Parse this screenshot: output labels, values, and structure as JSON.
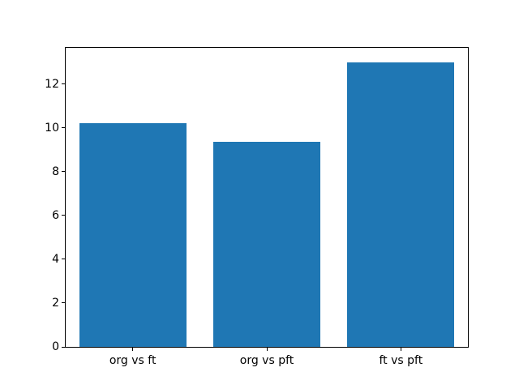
{
  "chart_data": {
    "type": "bar",
    "title": "",
    "categories": [
      "org vs ft",
      "org vs pft",
      "ft vs pft"
    ],
    "values": [
      10.2,
      9.35,
      13.0
    ],
    "xlabel": "",
    "ylabel": "",
    "ylim": [
      0,
      13.65
    ],
    "yticks": [
      0,
      2,
      4,
      6,
      8,
      10,
      12
    ],
    "bar_color": "#1f77b4",
    "bar_width_fraction": 0.8,
    "grid": false,
    "legend": null
  },
  "figure": {
    "background": "#ffffff",
    "axes_background": "#ffffff",
    "spine_color": "#000000",
    "tick_color": "#000000",
    "tick_label_color": "#000000"
  }
}
